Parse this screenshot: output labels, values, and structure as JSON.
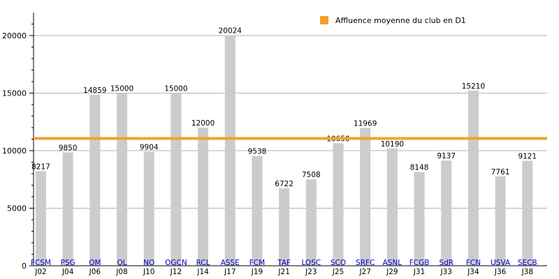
{
  "chart_data": {
    "type": "bar",
    "title": "",
    "xlabel": "",
    "ylabel": "",
    "ylim": [
      0,
      22000
    ],
    "yticks": [
      0,
      5000,
      10000,
      15000,
      20000
    ],
    "grid": true,
    "legend_position": "top-right",
    "categories": [
      "J02",
      "J04",
      "J06",
      "J08",
      "J10",
      "J12",
      "J14",
      "J17",
      "J19",
      "J21",
      "J23",
      "J25",
      "J27",
      "J29",
      "J31",
      "J33",
      "J34",
      "J36",
      "J38"
    ],
    "clubs": [
      "FCSM",
      "PSG",
      "OM",
      "OL",
      "NO",
      "OGCN",
      "RCL",
      "ASSE",
      "FCM",
      "TAF",
      "LOSC",
      "SCO",
      "SRFC",
      "ASNL",
      "FCGB",
      "SdR",
      "FCN",
      "USVA",
      "SECB"
    ],
    "series": [
      {
        "values": [
          8217,
          9850,
          14859,
          15000,
          9904,
          15000,
          12000,
          20024,
          9538,
          6722,
          7508,
          10650,
          11969,
          10190,
          8148,
          9137,
          15210,
          7761,
          9121
        ]
      }
    ],
    "average": {
      "name": "Affluence moyenne du club en D1",
      "value": 11060,
      "color": "#f5a02c"
    },
    "bar_color": "#cccccc"
  }
}
